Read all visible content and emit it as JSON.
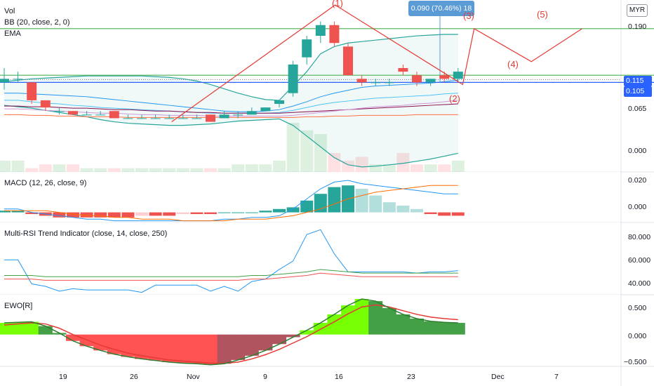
{
  "currency": "MYR",
  "panes": {
    "main": {
      "labels": [
        "Vol",
        "BB (20, close, 2, 0)",
        "EMA"
      ],
      "y_ticks": [
        "0.190",
        "0.065",
        "0.000"
      ],
      "price_tags": [
        {
          "text": "0.115",
          "color": "#2962ff"
        },
        {
          "text": "0.105",
          "color": "#2962ff"
        }
      ]
    },
    "macd": {
      "label": "MACD (12, 26, close, 9)",
      "y_ticks": [
        "0.020",
        "0.000"
      ]
    },
    "rsi": {
      "label": "Multi-RSI Trend Indicator (close, 14, close, 250)",
      "y_ticks": [
        "80.000",
        "60.000",
        "40.000"
      ]
    },
    "ewo": {
      "label": "EWO[R]",
      "y_ticks": [
        "0.500",
        "0.000",
        "−0.500"
      ]
    }
  },
  "x_ticks": [
    "19",
    "26",
    "Nov",
    "9",
    "16",
    "23",
    "Dec",
    "7"
  ],
  "measure_label": "0.090 (70.46%) 18",
  "wave_labels": [
    "(1)",
    "(2)",
    "(3)",
    "(4)",
    "(5)"
  ],
  "chart_data": [
    {
      "type": "candlestick",
      "pane": "price",
      "ylim": [
        -0.01,
        0.23
      ],
      "candles": [
        {
          "o": 0.115,
          "h": 0.135,
          "l": 0.105,
          "c": 0.12
        },
        {
          "o": 0.12,
          "h": 0.13,
          "l": 0.115,
          "c": 0.12
        },
        {
          "o": 0.115,
          "h": 0.115,
          "l": 0.085,
          "c": 0.09
        },
        {
          "o": 0.09,
          "h": 0.09,
          "l": 0.075,
          "c": 0.08
        },
        {
          "o": 0.075,
          "h": 0.08,
          "l": 0.07,
          "c": 0.075
        },
        {
          "o": 0.075,
          "h": 0.075,
          "l": 0.07,
          "c": 0.07
        },
        {
          "o": 0.07,
          "h": 0.075,
          "l": 0.07,
          "c": 0.07
        },
        {
          "o": 0.07,
          "h": 0.075,
          "l": 0.07,
          "c": 0.07
        },
        {
          "o": 0.075,
          "h": 0.075,
          "l": 0.065,
          "c": 0.065
        },
        {
          "o": 0.065,
          "h": 0.07,
          "l": 0.065,
          "c": 0.065
        },
        {
          "o": 0.065,
          "h": 0.07,
          "l": 0.065,
          "c": 0.065
        },
        {
          "o": 0.065,
          "h": 0.07,
          "l": 0.065,
          "c": 0.065
        },
        {
          "o": 0.065,
          "h": 0.07,
          "l": 0.065,
          "c": 0.065
        },
        {
          "o": 0.065,
          "h": 0.07,
          "l": 0.065,
          "c": 0.065
        },
        {
          "o": 0.065,
          "h": 0.07,
          "l": 0.065,
          "c": 0.065
        },
        {
          "o": 0.07,
          "h": 0.07,
          "l": 0.06,
          "c": 0.06
        },
        {
          "o": 0.065,
          "h": 0.075,
          "l": 0.065,
          "c": 0.07
        },
        {
          "o": 0.07,
          "h": 0.075,
          "l": 0.065,
          "c": 0.07
        },
        {
          "o": 0.07,
          "h": 0.08,
          "l": 0.07,
          "c": 0.075
        },
        {
          "o": 0.075,
          "h": 0.08,
          "l": 0.075,
          "c": 0.08
        },
        {
          "o": 0.085,
          "h": 0.09,
          "l": 0.08,
          "c": 0.09
        },
        {
          "o": 0.1,
          "h": 0.145,
          "l": 0.095,
          "c": 0.14
        },
        {
          "o": 0.15,
          "h": 0.18,
          "l": 0.14,
          "c": 0.175
        },
        {
          "o": 0.18,
          "h": 0.2,
          "l": 0.17,
          "c": 0.195
        },
        {
          "o": 0.195,
          "h": 0.2,
          "l": 0.165,
          "c": 0.17
        },
        {
          "o": 0.165,
          "h": 0.17,
          "l": 0.125,
          "c": 0.125
        },
        {
          "o": 0.12,
          "h": 0.125,
          "l": 0.11,
          "c": 0.115
        },
        {
          "o": 0.115,
          "h": 0.12,
          "l": 0.11,
          "c": 0.115
        },
        {
          "o": 0.115,
          "h": 0.12,
          "l": 0.11,
          "c": 0.115
        },
        {
          "o": 0.135,
          "h": 0.14,
          "l": 0.125,
          "c": 0.13
        },
        {
          "o": 0.125,
          "h": 0.13,
          "l": 0.11,
          "c": 0.115
        },
        {
          "o": 0.115,
          "h": 0.12,
          "l": 0.11,
          "c": 0.12
        },
        {
          "o": 0.125,
          "h": 0.13,
          "l": 0.115,
          "c": 0.12
        },
        {
          "o": 0.12,
          "h": 0.135,
          "l": 0.115,
          "c": 0.13
        }
      ],
      "volume": [
        3,
        3,
        1,
        2,
        2,
        2,
        1,
        1,
        1,
        1,
        1,
        1,
        1,
        1,
        1,
        1,
        1,
        2,
        2,
        2,
        3,
        13,
        11,
        10,
        5,
        3,
        4,
        2,
        2,
        5,
        2,
        2,
        2,
        3
      ],
      "bb_upper": [
        0.116,
        0.118,
        0.12,
        0.121,
        0.122,
        0.123,
        0.124,
        0.124,
        0.124,
        0.124,
        0.124,
        0.123,
        0.122,
        0.12,
        0.117,
        0.112,
        0.106,
        0.1,
        0.095,
        0.091,
        0.09,
        0.11,
        0.13,
        0.155,
        0.165,
        0.17,
        0.172,
        0.174,
        0.176,
        0.178,
        0.18,
        0.181,
        0.182,
        0.182
      ],
      "bb_basis": [
        0.1,
        0.1,
        0.099,
        0.098,
        0.097,
        0.096,
        0.095,
        0.093,
        0.091,
        0.089,
        0.087,
        0.085,
        0.083,
        0.081,
        0.079,
        0.077,
        0.075,
        0.074,
        0.074,
        0.075,
        0.077,
        0.082,
        0.088,
        0.095,
        0.1,
        0.104,
        0.108,
        0.11,
        0.111,
        0.112,
        0.113,
        0.114,
        0.116,
        0.118
      ],
      "bb_lower": [
        0.083,
        0.081,
        0.079,
        0.076,
        0.073,
        0.07,
        0.067,
        0.063,
        0.06,
        0.058,
        0.057,
        0.056,
        0.055,
        0.055,
        0.056,
        0.057,
        0.059,
        0.061,
        0.062,
        0.063,
        0.064,
        0.055,
        0.04,
        0.025,
        0.01,
        0.0,
        -0.003,
        -0.002,
        0.0,
        0.002,
        0.005,
        0.008,
        0.012,
        0.016
      ],
      "ema": [
        0.09,
        0.09,
        0.088,
        0.086,
        0.085,
        0.083,
        0.082,
        0.08,
        0.079,
        0.078,
        0.077,
        0.076,
        0.075,
        0.074,
        0.073,
        0.072,
        0.072,
        0.072,
        0.072,
        0.072,
        0.073,
        0.076,
        0.08,
        0.084,
        0.087,
        0.089,
        0.091,
        0.093,
        0.094,
        0.095,
        0.096,
        0.097,
        0.099,
        0.1
      ],
      "ema_slow": [
        0.082,
        0.082,
        0.081,
        0.081,
        0.08,
        0.079,
        0.079,
        0.078,
        0.077,
        0.077,
        0.076,
        0.075,
        0.075,
        0.074,
        0.073,
        0.073,
        0.072,
        0.072,
        0.072,
        0.072,
        0.072,
        0.073,
        0.074,
        0.075,
        0.076,
        0.077,
        0.078,
        0.079,
        0.08,
        0.081,
        0.082,
        0.083,
        0.084,
        0.085
      ],
      "ema_flat": [
        0.07,
        0.07,
        0.069,
        0.069,
        0.068,
        0.068,
        0.067,
        0.067,
        0.067,
        0.066,
        0.066,
        0.066,
        0.066,
        0.066,
        0.066,
        0.066,
        0.066,
        0.066,
        0.066,
        0.066,
        0.066,
        0.066,
        0.067,
        0.067,
        0.068,
        0.068,
        0.069,
        0.069,
        0.069,
        0.069,
        0.07,
        0.07,
        0.07,
        0.07
      ],
      "ema_pink": [
        0.078,
        0.078,
        0.077,
        0.076,
        0.075,
        0.074,
        0.073,
        0.072,
        0.072,
        0.071,
        0.07,
        0.07,
        0.069,
        0.069,
        0.069,
        0.068,
        0.068,
        0.068,
        0.068,
        0.068,
        0.068,
        0.069,
        0.071,
        0.073,
        0.075,
        0.077,
        0.079,
        0.081,
        0.082,
        0.083,
        0.085,
        0.086,
        0.088,
        0.09
      ],
      "hlines": [
        0.19,
        0.125,
        0.115,
        0.105,
        0.119
      ],
      "wave_path": [
        [
          0.105,
          0.06
        ],
        [
          0.205,
          0.223
        ],
        [
          0.283,
          0.112
        ],
        [
          0.29,
          0.19
        ],
        [
          0.325,
          0.144
        ],
        [
          0.356,
          0.19
        ]
      ],
      "measure_x": 0.27
    },
    {
      "type": "histogram",
      "pane": "macd",
      "ylim": [
        -0.006,
        0.024
      ],
      "histogram": [
        0.001,
        0.001,
        -0.001,
        -0.002,
        -0.003,
        -0.003,
        -0.003,
        -0.003,
        -0.003,
        -0.003,
        -0.002,
        -0.002,
        -0.002,
        -0.001,
        -0.001,
        -0.001,
        0.0,
        0.0,
        0.0,
        0.001,
        0.002,
        0.003,
        0.007,
        0.011,
        0.015,
        0.016,
        0.014,
        0.01,
        0.006,
        0.004,
        0.002,
        -0.001,
        -0.002,
        -0.002
      ],
      "macd": [
        0.002,
        0.002,
        0.0,
        -0.001,
        -0.002,
        -0.003,
        -0.004,
        -0.004,
        -0.005,
        -0.005,
        -0.005,
        -0.005,
        -0.005,
        -0.005,
        -0.005,
        -0.005,
        -0.004,
        -0.004,
        -0.003,
        -0.003,
        -0.002,
        0.002,
        0.008,
        0.014,
        0.018,
        0.019,
        0.017,
        0.016,
        0.015,
        0.014,
        0.013,
        0.012,
        0.011,
        0.011
      ],
      "signal": [
        0.001,
        0.001,
        0.001,
        0.001,
        0.0,
        -0.001,
        -0.002,
        -0.002,
        -0.003,
        -0.003,
        -0.004,
        -0.004,
        -0.004,
        -0.005,
        -0.005,
        -0.005,
        -0.005,
        -0.004,
        -0.004,
        -0.004,
        -0.003,
        -0.002,
        0.0,
        0.002,
        0.005,
        0.008,
        0.01,
        0.012,
        0.013,
        0.014,
        0.015,
        0.016,
        0.016,
        0.016
      ]
    },
    {
      "type": "line",
      "pane": "rsi",
      "ylim": [
        35,
        95
      ],
      "rsi": [
        64,
        64,
        44,
        42,
        38,
        40,
        39,
        39,
        39,
        39,
        37,
        43,
        43,
        43,
        43,
        38,
        42,
        38,
        46,
        48,
        56,
        63,
        85,
        89,
        69,
        54,
        54,
        54,
        54,
        54,
        53,
        54,
        54,
        55
      ],
      "rsi_ma": [
        51,
        51,
        51,
        50,
        50,
        50,
        50,
        50,
        50,
        50,
        50,
        50,
        50,
        50,
        50,
        50,
        50,
        50,
        51,
        51,
        52,
        53,
        54,
        56,
        55,
        54,
        53,
        53,
        53,
        53,
        53,
        53,
        53,
        53
      ]
    },
    {
      "type": "area",
      "pane": "ewo",
      "ylim": [
        -0.6,
        0.75
      ],
      "ewo": [
        0.22,
        0.23,
        0.24,
        0.16,
        0.03,
        -0.12,
        -0.22,
        -0.3,
        -0.37,
        -0.42,
        -0.46,
        -0.49,
        -0.52,
        -0.54,
        -0.55,
        -0.57,
        -0.55,
        -0.48,
        -0.4,
        -0.3,
        -0.18,
        -0.05,
        0.08,
        0.22,
        0.38,
        0.55,
        0.67,
        0.63,
        0.5,
        0.38,
        0.3,
        0.25,
        0.23,
        0.22
      ],
      "ewo_signal": [
        0.18,
        0.2,
        0.22,
        0.2,
        0.12,
        0.0,
        -0.1,
        -0.2,
        -0.28,
        -0.35,
        -0.4,
        -0.44,
        -0.48,
        -0.5,
        -0.52,
        -0.54,
        -0.54,
        -0.52,
        -0.46,
        -0.38,
        -0.28,
        -0.16,
        -0.04,
        0.1,
        0.24,
        0.39,
        0.52,
        0.56,
        0.52,
        0.45,
        0.38,
        0.33,
        0.3,
        0.28
      ]
    }
  ]
}
